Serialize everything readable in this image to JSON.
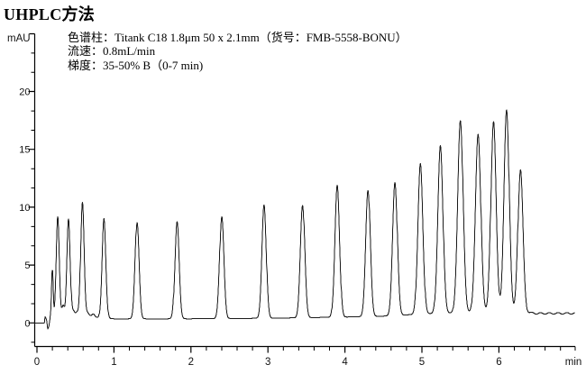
{
  "page_title": "UHPLC方法",
  "annotation": {
    "column": "色谱柱：Titank C18 1.8μm 50 x 2.1mm（货号：FMB-5558-BONU）",
    "flow_rate": "流速：0.8mL/min",
    "gradient": "梯度：35-50% B（0-7 min)"
  },
  "chart_data": {
    "type": "line",
    "title": "UHPLC方法",
    "xlabel": "min",
    "ylabel": "mAU",
    "xlim": [
      -0.035,
      6.985
    ],
    "ylim": [
      -2,
      25
    ],
    "x_major_ticks": [
      0,
      1,
      2,
      3,
      4,
      5,
      6
    ],
    "y_major_ticks": [
      20,
      15,
      10,
      5,
      0
    ],
    "x_minor_step_min": 0.2,
    "grid": "off",
    "legend": "none",
    "trace_color": "#1a1a1a",
    "peaks": [
      {
        "t": 0.2,
        "h": 4.0,
        "w": 0.01
      },
      {
        "t": 0.27,
        "h": 8.6,
        "w": 0.02
      },
      {
        "t": 0.41,
        "h": 8.4,
        "w": 0.021
      },
      {
        "t": 0.59,
        "h": 9.9,
        "w": 0.022
      },
      {
        "t": 0.87,
        "h": 8.6,
        "w": 0.024
      },
      {
        "t": 1.3,
        "h": 8.3,
        "w": 0.026
      },
      {
        "t": 1.82,
        "h": 8.4,
        "w": 0.027
      },
      {
        "t": 2.4,
        "h": 8.8,
        "w": 0.028
      },
      {
        "t": 2.95,
        "h": 9.8,
        "w": 0.028
      },
      {
        "t": 3.45,
        "h": 9.7,
        "w": 0.029
      },
      {
        "t": 3.9,
        "h": 11.4,
        "w": 0.03
      },
      {
        "t": 4.3,
        "h": 10.9,
        "w": 0.03
      },
      {
        "t": 4.65,
        "h": 11.5,
        "w": 0.031
      },
      {
        "t": 4.98,
        "h": 13.0,
        "w": 0.032
      },
      {
        "t": 5.24,
        "h": 14.5,
        "w": 0.033
      },
      {
        "t": 5.5,
        "h": 16.6,
        "w": 0.035
      },
      {
        "t": 5.73,
        "h": 15.4,
        "w": 0.035
      },
      {
        "t": 5.93,
        "h": 16.5,
        "w": 0.034
      },
      {
        "t": 6.1,
        "h": 17.5,
        "w": 0.034
      },
      {
        "t": 6.28,
        "h": 12.3,
        "w": 0.033
      }
    ],
    "small_bumps": [
      {
        "t": 0.34,
        "h": 0.9,
        "w": 0.015
      },
      {
        "t": 0.475,
        "h": 0.45,
        "w": 0.018
      },
      {
        "t": 0.52,
        "h": 0.35,
        "w": 0.015
      },
      {
        "t": 0.66,
        "h": 0.35,
        "w": 0.02
      },
      {
        "t": 0.73,
        "h": 0.3,
        "w": 0.02
      }
    ],
    "baseline_points": [
      [
        -0.04,
        0
      ],
      [
        0.095,
        0
      ],
      [
        0.105,
        0.55
      ],
      [
        0.125,
        0.25
      ],
      [
        0.14,
        -0.55
      ],
      [
        0.155,
        -0.3
      ],
      [
        0.175,
        0.55
      ],
      [
        0.3,
        0.6
      ],
      [
        0.55,
        0.55
      ],
      [
        0.8,
        0.45
      ],
      [
        1.0,
        0.35
      ],
      [
        2.0,
        0.35
      ],
      [
        3.0,
        0.4
      ],
      [
        4.0,
        0.5
      ],
      [
        4.6,
        0.6
      ],
      [
        5.0,
        0.78
      ],
      [
        5.6,
        0.9
      ],
      [
        6.3,
        0.92
      ],
      [
        6.5,
        0.82
      ],
      [
        6.99,
        0.82
      ]
    ],
    "end_noise": {
      "start": 6.36,
      "amplitude": 0.07,
      "freq": 55
    }
  }
}
